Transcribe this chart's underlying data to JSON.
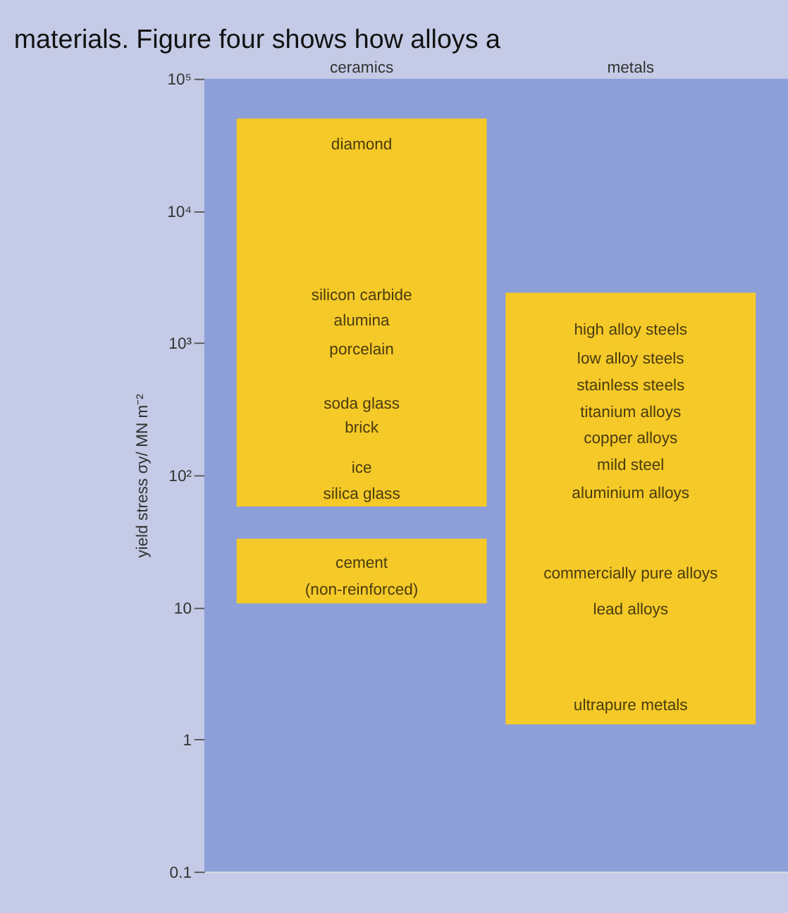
{
  "chart_data": {
    "type": "bar",
    "ylabel": "yield stress σy/ MN m⁻²",
    "categories": [
      "ceramics",
      "metals"
    ],
    "log": true,
    "ylim": [
      0.1,
      100000
    ],
    "yticks": [
      {
        "value": 100000,
        "label": "10⁵"
      },
      {
        "value": 10000,
        "label": "10⁴"
      },
      {
        "value": 1000,
        "label": "10³"
      },
      {
        "value": 100,
        "label": "10²"
      },
      10,
      1,
      0.1
    ],
    "legend": false,
    "series": [
      {
        "color": "#f5c928",
        "base": [
          58,
          1.3
        ],
        "values": [
          49942,
          2398.7
        ]
      },
      {
        "color": "#f5c928",
        "base": [
          10.7,
          null
        ],
        "values": [
          22.3,
          null
        ]
      }
    ],
    "annotations": [
      "materials. Figure four shows how alloys a",
      "diamond",
      "silicon carbide",
      "alumina",
      "porcelain",
      "soda glass",
      "brick",
      "ice",
      "silica glass",
      "cement",
      "(non-reinforced)",
      "high alloy steels",
      "low alloy steels",
      "stainless steels",
      "titanium alloys",
      "copper alloys",
      "mild steel",
      "aluminium alloys",
      "commercially pure alloys",
      "lead alloys",
      "ultrapure metals"
    ]
  }
}
